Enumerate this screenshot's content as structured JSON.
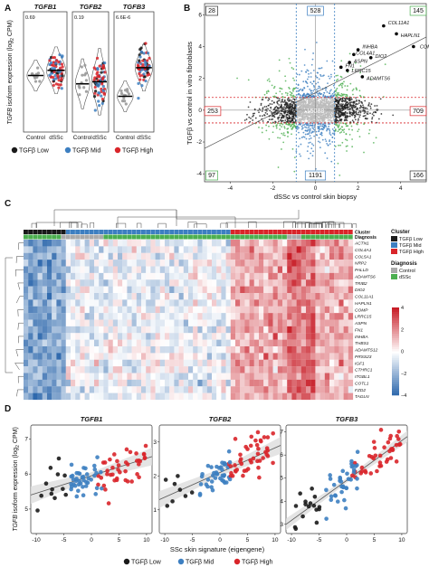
{
  "panels": {
    "A": "A",
    "B": "B",
    "C": "C",
    "D": "D"
  },
  "colors": {
    "low": "#1a1a1a",
    "mid": "#3d7fc1",
    "high": "#d9252a",
    "green": "#4caf50",
    "grey": "#bbbbbb",
    "ctrl": "#aaaaaa"
  },
  "panelA": {
    "ylabel_main": "TGFB isoform expression (log",
    "ylabel_sub": "2",
    "ylabel_tail": " CPM)",
    "subplots": [
      {
        "title": "TGFB1",
        "p": "0.69",
        "ylim": [
          4,
          8
        ],
        "xticks": [
          "Control",
          "dSSc"
        ],
        "ctrl_median": 6.0,
        "dssc_median": 6.2
      },
      {
        "title": "TGFB2",
        "p": "0.19",
        "ylim": [
          0,
          5
        ],
        "xticks": [
          "Control",
          "dSSc"
        ],
        "ctrl_median": 2.1,
        "dssc_median": 2.2
      },
      {
        "title": "TGFB3",
        "p": "6.6E-6",
        "ylim": [
          4,
          8
        ],
        "xticks": [
          "Control",
          "dSSc"
        ],
        "ctrl_median": 5.2,
        "dssc_median": 6.3
      }
    ],
    "legend": [
      "TGFβ Low",
      "TGFβ Mid",
      "TGFβ High"
    ]
  },
  "panelB": {
    "xlabel": "dSSc vs control skin biopsy",
    "ylabel": "TGFβ vs control in vitro fibroblasts",
    "xticks": [
      "-4",
      "-2",
      "0",
      "2",
      "4"
    ],
    "yticks": [
      "-4",
      "-2",
      "0",
      "2",
      "4",
      "6"
    ],
    "counts": {
      "tl": "28",
      "tm": "528",
      "tr": "145",
      "ml": "253",
      "center": "15088",
      "mr": "709",
      "bl": "97",
      "bm": "1191",
      "br": "166"
    },
    "genes": [
      "COL11A1",
      "HAPLN1",
      "COMP",
      "INHBA",
      "COL4A1",
      "DIO2",
      "ASPN",
      "FN1",
      "LRRC15",
      "ADAMTS6"
    ]
  },
  "panelC": {
    "genes": [
      "ACTN1",
      "COL4A1",
      "COL5A1",
      "NRP2",
      "PALLD",
      "ADAMTS6",
      "TRIB2",
      "DIO2",
      "COL11A1",
      "HAPLN1",
      "COMP",
      "LRRC15",
      "ASPN",
      "FN1",
      "INHBA",
      "THBS1",
      "ADAMTS12",
      "PRSS23",
      "IGF1",
      "CTHRC1",
      "ITGBL1",
      "COTL1",
      "FZD2",
      "TAGLN"
    ],
    "row_labels": [
      "Cluster",
      "Diagnosis"
    ],
    "legend_cluster_title": "Cluster",
    "legend_cluster": [
      "TGFβ Low",
      "TGFβ Mid",
      "TGFβ High"
    ],
    "legend_diag_title": "Diagnosis",
    "legend_diag": [
      "Control",
      "dSSc"
    ],
    "scale_ticks": [
      "4",
      "2",
      "0",
      "−2",
      "−4"
    ]
  },
  "panelD": {
    "ylabel": "TGFB isoform expression (log",
    "ylabel_sub": "2",
    "ylabel_tail": " CPM)",
    "xlabel": "SSc skin signature (eigengene)",
    "legend": [
      "TGFβ Low",
      "TGFβ Mid",
      "TGFβ High"
    ],
    "subplots": [
      {
        "title": "TGFB1",
        "xticks": [
          "-10",
          "-5",
          "0",
          "5",
          "10"
        ],
        "yticks": [
          "5",
          "6",
          "7"
        ]
      },
      {
        "title": "TGFB2",
        "xticks": [
          "-10",
          "-5",
          "0",
          "5",
          "10"
        ],
        "yticks": [
          "1",
          "2",
          "3"
        ]
      },
      {
        "title": "TGFB3",
        "xticks": [
          "-10",
          "-5",
          "0",
          "5",
          "10"
        ],
        "yticks": [
          "3",
          "4",
          "5",
          "6",
          "7"
        ]
      }
    ]
  },
  "chart_data": [
    {
      "type": "scatter",
      "title": "TGFB1",
      "xlabel": "SSc skin signature (eigengene)",
      "ylabel": "TGFB isoform expression (log2 CPM)",
      "xlim": [
        -11,
        11
      ],
      "ylim": [
        4.3,
        7.4
      ],
      "trend": [
        [
          -11,
          5.4
        ],
        [
          11,
          6.5
        ]
      ]
    },
    {
      "type": "scatter",
      "title": "TGFB2",
      "xlabel": "SSc skin signature (eigengene)",
      "xlim": [
        -11,
        11
      ],
      "ylim": [
        0.3,
        3.5
      ],
      "trend": [
        [
          -11,
          1.3
        ],
        [
          11,
          2.9
        ]
      ]
    },
    {
      "type": "scatter",
      "title": "TGFB3",
      "xlabel": "SSc skin signature (eigengene)",
      "xlim": [
        -11,
        11
      ],
      "ylim": [
        2.6,
        7.3
      ],
      "trend": [
        [
          -11,
          3.0
        ],
        [
          11,
          6.8
        ]
      ]
    }
  ]
}
